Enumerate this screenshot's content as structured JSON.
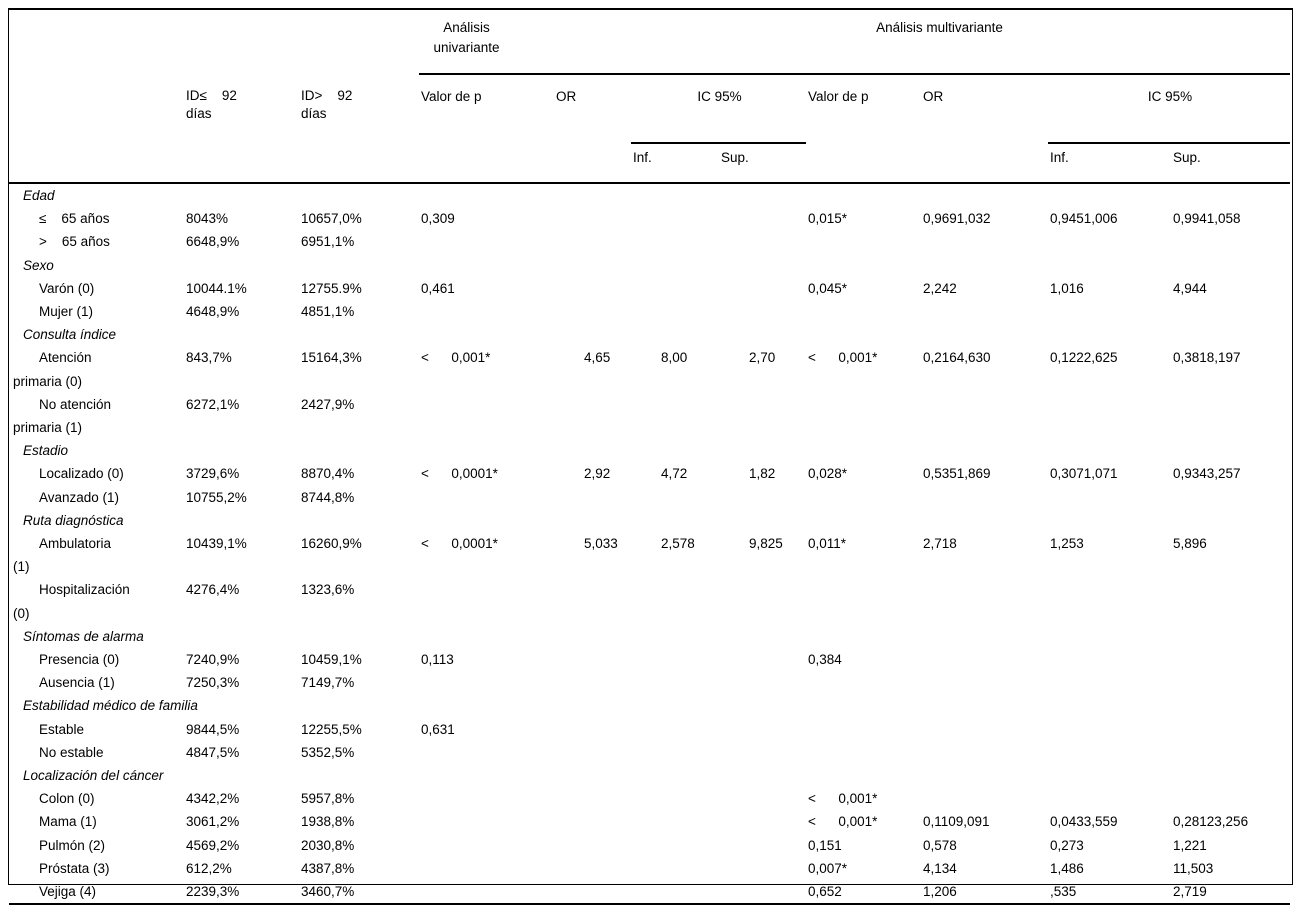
{
  "table": {
    "header": {
      "analysis_univariate": "Análisis\nunivariante",
      "analysis_multivariate": "Análisis multivariante",
      "col_id_le": "ID≤    92\ndías",
      "col_id_gt": "ID>    92\ndías",
      "col_p_uni": "Valor de p",
      "col_or_uni": "OR",
      "col_ic_uni": "IC 95%",
      "col_inf_uni": "Inf.",
      "col_sup_uni": "Sup.",
      "col_p_multi": "Valor de p",
      "col_or_multi": "OR",
      "col_ic_multi": "IC 95%",
      "col_inf_multi": "Inf.",
      "col_sup_multi": "Sup."
    },
    "rows": [
      {
        "type": "group",
        "label": "Edad"
      },
      {
        "type": "item",
        "label": "≤    65 años",
        "cells": [
          "8043%",
          "10657,0%",
          "0,309",
          "",
          "",
          "",
          "0,015*",
          "0,9691,032",
          "0,9451,006",
          "0,9941,058"
        ]
      },
      {
        "type": "item",
        "label": ">    65 años",
        "cells": [
          "6648,9%",
          "6951,1%",
          "",
          "",
          "",
          "",
          "",
          "",
          "",
          ""
        ]
      },
      {
        "type": "group",
        "label": "Sexo"
      },
      {
        "type": "item",
        "label": "Varón (0)",
        "cells": [
          "10044.1%",
          "12755.9%",
          "0,461",
          "",
          "",
          "",
          "0,045*",
          "2,242",
          "1,016",
          "4,944"
        ]
      },
      {
        "type": "item",
        "label": "Mujer (1)",
        "cells": [
          "4648,9%",
          "4851,1%",
          "",
          "",
          "",
          "",
          "",
          "",
          "",
          ""
        ]
      },
      {
        "type": "group",
        "label": "Consulta índice"
      },
      {
        "type": "item",
        "label": "Atención\nprimaria (0)",
        "cells": [
          "843,7%",
          "15164,3%",
          "<      0,001*",
          "4,65",
          "8,00",
          "2,70",
          "<      0,001*",
          "0,2164,630",
          "0,1222,625",
          "0,3818,197"
        ]
      },
      {
        "type": "item",
        "label": "No atención\nprimaria (1)",
        "cells": [
          "6272,1%",
          "2427,9%",
          "",
          "",
          "",
          "",
          "",
          "",
          "",
          ""
        ]
      },
      {
        "type": "group",
        "label": "Estadio"
      },
      {
        "type": "item",
        "label": "Localizado (0)",
        "cells": [
          "3729,6%",
          "8870,4%",
          "<      0,0001*",
          "2,92",
          "4,72",
          "1,82",
          "0,028*",
          "0,5351,869",
          "0,3071,071",
          "0,9343,257"
        ]
      },
      {
        "type": "item",
        "label": "Avanzado (1)",
        "cells": [
          "10755,2%",
          "8744,8%",
          "",
          "",
          "",
          "",
          "",
          "",
          "",
          ""
        ]
      },
      {
        "type": "group",
        "label": "Ruta diagnóstica"
      },
      {
        "type": "item",
        "label": "Ambulatoria\n(1)",
        "cells": [
          "10439,1%",
          "16260,9%",
          "<      0,0001*",
          "5,033",
          "2,578",
          "9,825",
          "0,011*",
          "2,718",
          "1,253",
          "5,896"
        ]
      },
      {
        "type": "item",
        "label": "Hospitalización\n(0)",
        "cells": [
          "4276,4%",
          "1323,6%",
          "",
          "",
          "",
          "",
          "",
          "",
          "",
          ""
        ]
      },
      {
        "type": "group",
        "label": "Síntomas de alarma"
      },
      {
        "type": "item",
        "label": "Presencia (0)",
        "cells": [
          "7240,9%",
          "10459,1%",
          "0,113",
          "",
          "",
          "",
          "0,384",
          "",
          "",
          ""
        ]
      },
      {
        "type": "item",
        "label": "Ausencia (1)",
        "cells": [
          "7250,3%",
          "7149,7%",
          "",
          "",
          "",
          "",
          "",
          "",
          "",
          ""
        ]
      },
      {
        "type": "group",
        "label": "Estabilidad médico de familia"
      },
      {
        "type": "item",
        "label": "Estable",
        "cells": [
          "9844,5%",
          "12255,5%",
          "0,631",
          "",
          "",
          "",
          "",
          "",
          "",
          ""
        ]
      },
      {
        "type": "item",
        "label": "No estable",
        "cells": [
          "4847,5%",
          "5352,5%",
          "",
          "",
          "",
          "",
          "",
          "",
          "",
          ""
        ]
      },
      {
        "type": "group",
        "label": "Localización del cáncer"
      },
      {
        "type": "item",
        "label": "Colon (0)",
        "cells": [
          "4342,2%",
          "5957,8%",
          "",
          "",
          "",
          "",
          "<      0,001*",
          "",
          "",
          ""
        ]
      },
      {
        "type": "item",
        "label": "Mama (1)",
        "cells": [
          "3061,2%",
          "1938,8%",
          "",
          "",
          "",
          "",
          "<      0,001*",
          "0,1109,091",
          "0,0433,559",
          "0,28123,256"
        ]
      },
      {
        "type": "item",
        "label": "Pulmón (2)",
        "cells": [
          "4569,2%",
          "2030,8%",
          "",
          "",
          "",
          "",
          "0,151",
          "0,578",
          "0,273",
          "1,221"
        ]
      },
      {
        "type": "item",
        "label": "Próstata (3)",
        "cells": [
          "612,2%",
          "4387,8%",
          "",
          "",
          "",
          "",
          "0,007*",
          "4,134",
          "1,486",
          "11,503"
        ]
      },
      {
        "type": "item",
        "label": "Vejiga (4)",
        "cells": [
          "2239,3%",
          "3460,7%",
          "",
          "",
          "",
          "",
          "0,652",
          "1,206",
          ",535",
          "2,719"
        ]
      }
    ]
  }
}
